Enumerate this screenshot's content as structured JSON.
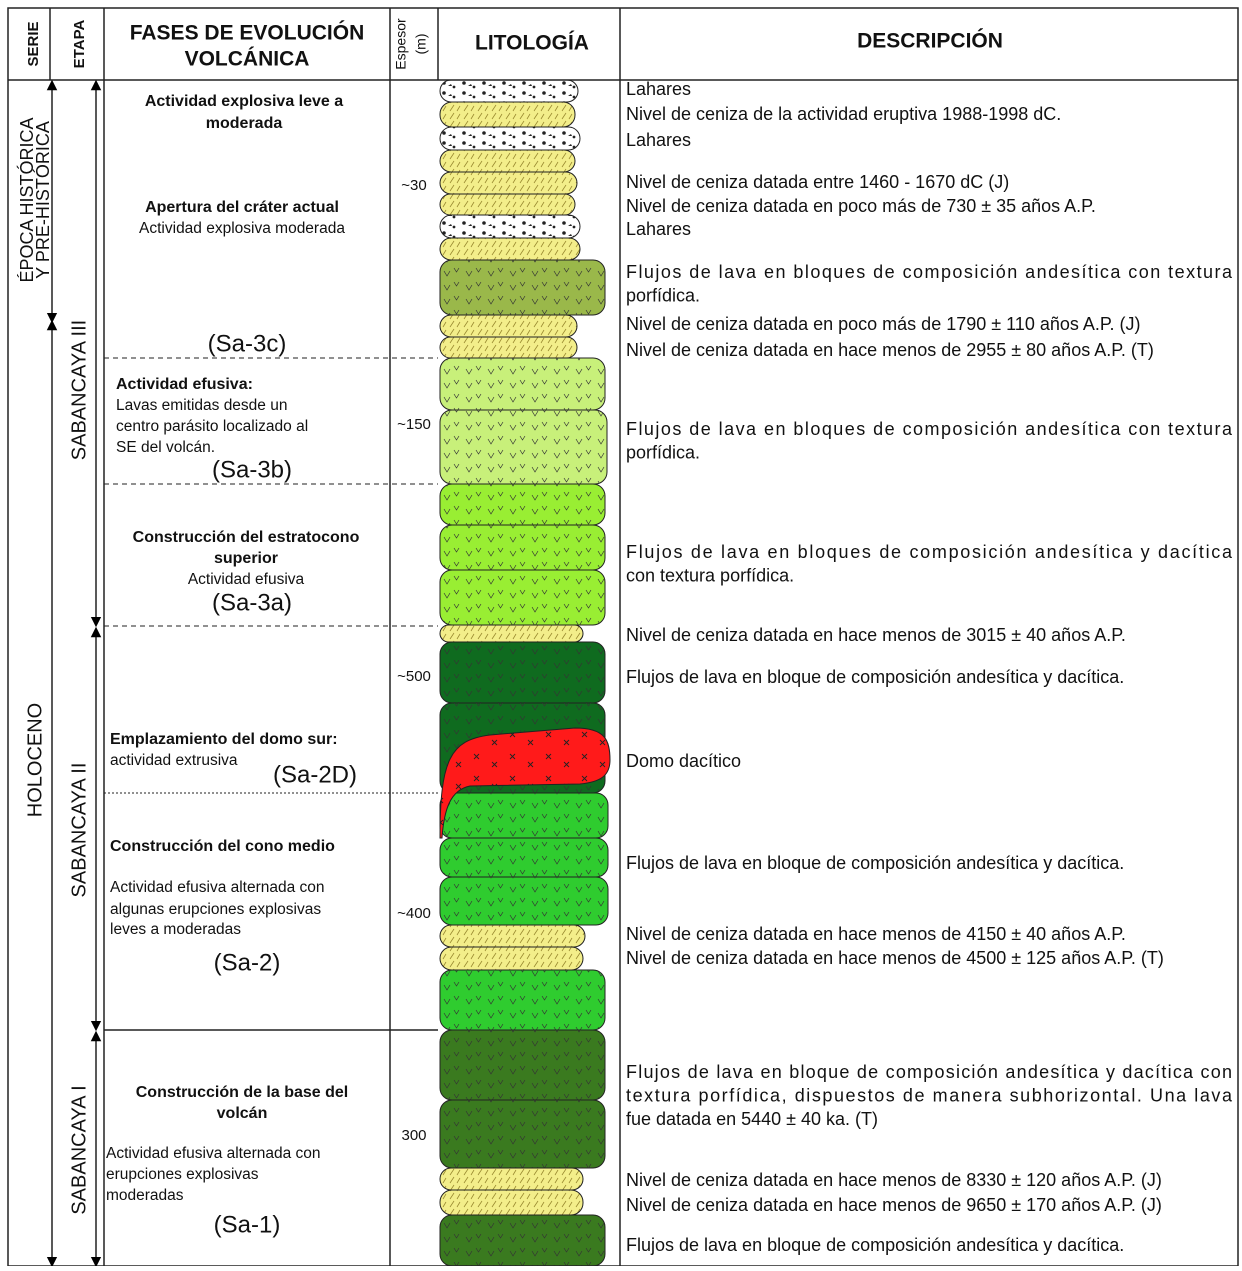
{
  "header": {
    "serie": "SERIE",
    "etapa": "ETAPA",
    "fases": [
      "FASES DE EVOLUCIÓN",
      "VOLCÁNICA"
    ],
    "espesor": [
      "Espesor",
      "(m)"
    ],
    "litologia": "LITOLOGÍA",
    "descripcion": "DESCRIPCIÓN"
  },
  "serie": [
    [
      "ÉPOCA HISTÓRICA",
      "Y PRE-HISTÓRICA"
    ],
    [
      "HOLOCENO"
    ]
  ],
  "etapa": [
    "SABANCAYA III",
    "SABANCAYA II",
    "SABANCAYA I"
  ],
  "phases": [
    {
      "bold": [
        "Actividad explosiva leve a",
        "moderada"
      ],
      "normal": []
    },
    {
      "bold": [
        "Apertura del cráter actual"
      ],
      "normal": [
        "Actividad explosiva moderada"
      ]
    },
    {
      "code": "(Sa-3c)"
    },
    {
      "bold": [
        "Actividad efusiva:"
      ],
      "normal": [
        "Lavas emitidas desde un",
        "centro parásito localizado al",
        "SE del volcán."
      ],
      "code": "(Sa-3b)"
    },
    {
      "bold": [
        "Construcción del estratocono",
        "superior"
      ],
      "normal": [
        "Actividad efusiva"
      ],
      "code": "(Sa-3a)"
    },
    {
      "bold": [
        "Emplazamiento del domo sur:"
      ],
      "normal": [
        "actividad extrusiva"
      ],
      "code": "(Sa-2D)"
    },
    {
      "bold": [
        "Construcción del cono medio"
      ],
      "normal": [
        "Actividad efusiva alternada con",
        "algunas erupciones explosivas",
        "leves a moderadas"
      ],
      "code": "(Sa-2)"
    },
    {
      "bold": [
        "Construcción de la base del",
        "volcán"
      ],
      "normal": [
        "Actividad efusiva alternada con",
        "erupciones explosivas",
        "moderadas"
      ],
      "code": "(Sa-1)"
    }
  ],
  "thickness": [
    "~30",
    "~150",
    "~500",
    "~400",
    "300"
  ],
  "descriptions": [
    [
      "Lahares"
    ],
    [
      "Nivel de ceniza de la actividad eruptiva 1988-1998 dC."
    ],
    [
      "Lahares"
    ],
    [
      "Nivel de ceniza datada entre 1460 - 1670 dC (J)"
    ],
    [
      "Nivel de ceniza datada en poco más de 730 ± 35 años A.P."
    ],
    [
      "Lahares"
    ],
    [
      "Flujos de lava en bloques de composición andesítica con textura",
      "porfídica."
    ],
    [
      "Nivel de ceniza datada en poco más de 1790 ± 110 años A.P. (J)"
    ],
    [
      "Nivel de ceniza datada en hace menos de 2955 ± 80 años A.P. (T)"
    ],
    [
      "Flujos de lava en bloques de composición andesítica con textura",
      "porfídica."
    ],
    [
      "Flujos de lava en bloques de composición andesítica y dacítica",
      "con textura porfídica."
    ],
    [
      "Nivel de ceniza datada en hace menos de 3015 ± 40 años A.P."
    ],
    [
      "Flujos de lava en bloque de composición andesítica y dacítica."
    ],
    [
      "Domo dacítico"
    ],
    [
      "Flujos de lava en bloque de composición andesítica y dacítica."
    ],
    [
      "Nivel de ceniza datada en hace menos de 4150 ± 40 años A.P."
    ],
    [
      "Nivel de ceniza datada en hace menos de 4500 ± 125 años A.P. (T)"
    ],
    [
      "Flujos de lava en bloque de composición andesítica y dacítica con",
      "textura porfídica, dispuestos de manera subhorizontal. Una lava",
      "fue datada en 5440 ± 40 ka. (T)"
    ],
    [
      "Nivel de ceniza datada en hace menos de 8330 ± 120 años A.P. (J)"
    ],
    [
      "Nivel de ceniza datada en hace menos de 9650 ± 170 años A.P. (J)"
    ],
    [
      "Flujos de lava en bloque de composición andesítica y dacítica."
    ]
  ]
}
